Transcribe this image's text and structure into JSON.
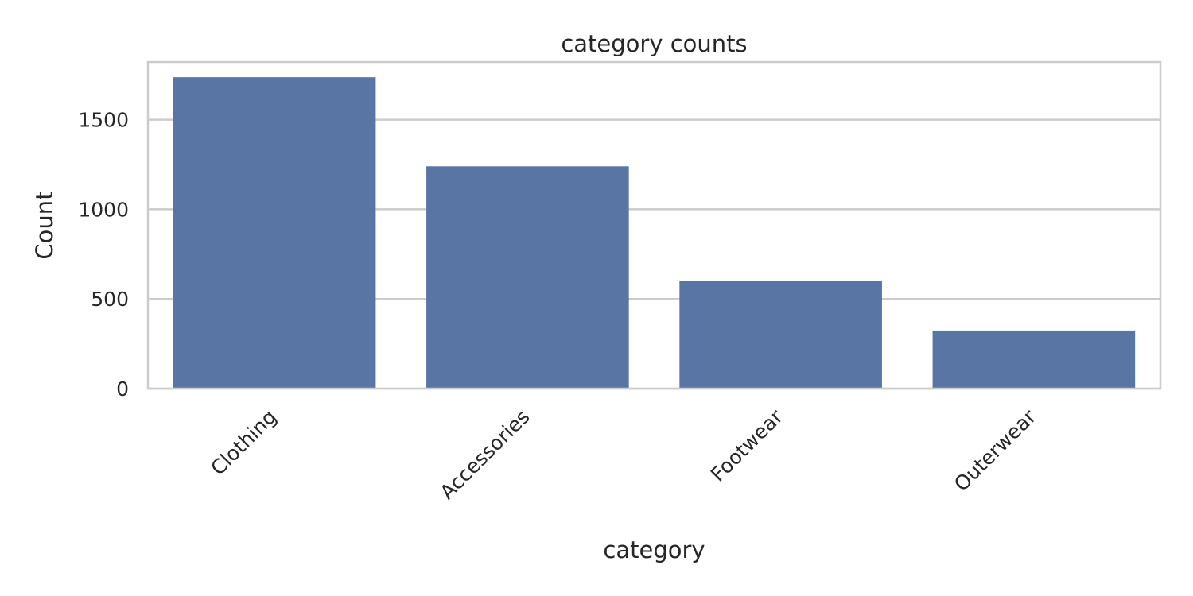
{
  "chart_data": {
    "type": "bar",
    "title": "category counts",
    "xlabel": "category",
    "ylabel": "Count",
    "categories": [
      "Clothing",
      "Accessories",
      "Footwear",
      "Outerwear"
    ],
    "values": [
      1737,
      1240,
      599,
      324
    ],
    "ylim": [
      0,
      1822
    ],
    "yticks": [
      0,
      500,
      1000,
      1500
    ],
    "ytick_labels": [
      "0",
      "500",
      "1000",
      "1500"
    ],
    "grid": true,
    "bar_color": "#5975a4",
    "grid_color": "#cccccc",
    "spine_color": "#cccccc",
    "text_color": "#262626"
  }
}
